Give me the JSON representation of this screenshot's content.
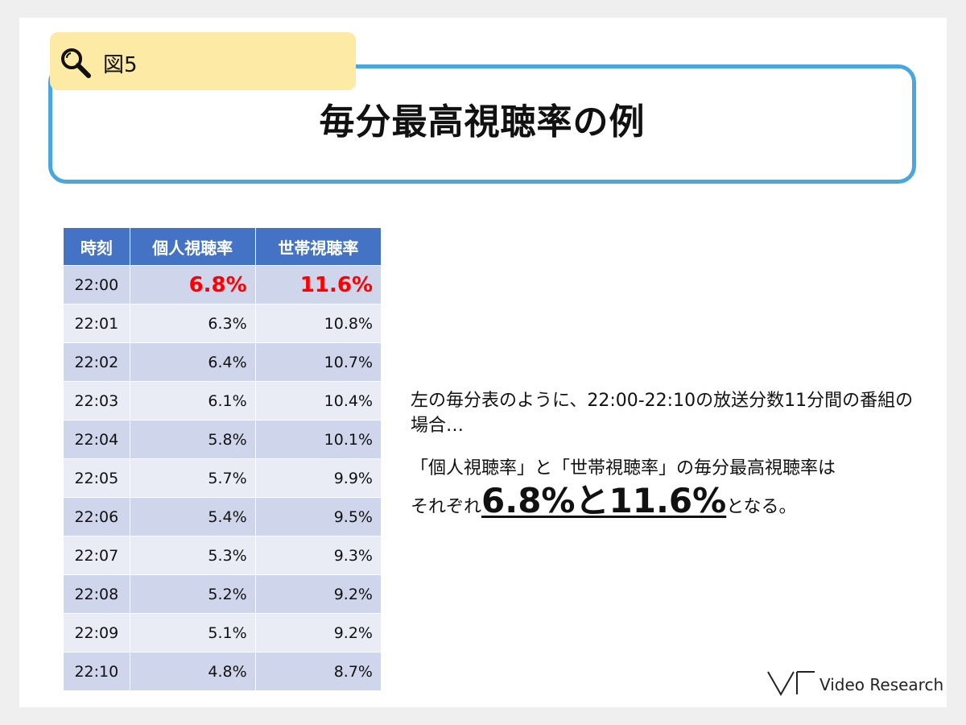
{
  "figure_tab": {
    "label": "図5",
    "icon": "magnifier-icon"
  },
  "title": "毎分最高視聴率の例",
  "table": {
    "headers": [
      "時刻",
      "個人視聴率",
      "世帯視聴率"
    ],
    "rows": [
      [
        "22:00",
        "6.8%",
        "11.6%"
      ],
      [
        "22:01",
        "6.3%",
        "10.8%"
      ],
      [
        "22:02",
        "6.4%",
        "10.7%"
      ],
      [
        "22:03",
        "6.1%",
        "10.4%"
      ],
      [
        "22:04",
        "5.8%",
        "10.1%"
      ],
      [
        "22:05",
        "5.7%",
        "9.9%"
      ],
      [
        "22:06",
        "5.4%",
        "9.5%"
      ],
      [
        "22:07",
        "5.3%",
        "9.3%"
      ],
      [
        "22:08",
        "5.2%",
        "9.2%"
      ],
      [
        "22:09",
        "5.1%",
        "9.2%"
      ],
      [
        "22:10",
        "4.8%",
        "8.7%"
      ]
    ]
  },
  "description": {
    "para1": "左の毎分表のように、22:00-22:10の放送分数11分間の番組の場合…",
    "para2_lead": "「個人視聴率」と「世帯視聴率」の毎分最高視聴率は",
    "para2_pre": "それぞれ",
    "para2_emphasis": "6.8%と11.6%",
    "para2_post": "となる。"
  },
  "logo": {
    "text": "Video Research"
  },
  "colors": {
    "header_blue": "#4472c4",
    "highlight_red": "#ff0000",
    "title_border": "#4aa7de",
    "tab_yellow": "#fdeaa5"
  }
}
